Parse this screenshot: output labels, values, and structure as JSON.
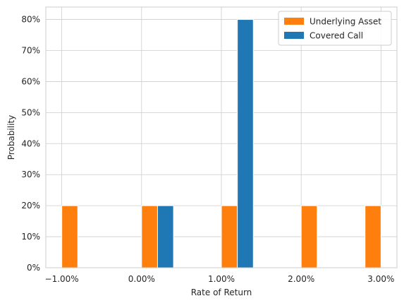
{
  "chart_data": {
    "type": "bar",
    "xlabel": "Rate of Return",
    "ylabel": "Probability",
    "xlim": [
      -1.2,
      3.2
    ],
    "ylim": [
      0,
      84
    ],
    "grid": true,
    "legend_position": "top-right",
    "x_ticks": [
      {
        "value": -1.0,
        "label": "−1.00%"
      },
      {
        "value": 0.0,
        "label": "0.00%"
      },
      {
        "value": 1.0,
        "label": "1.00%"
      },
      {
        "value": 2.0,
        "label": "2.00%"
      },
      {
        "value": 3.0,
        "label": "3.00%"
      }
    ],
    "y_ticks": [
      {
        "value": 0,
        "label": "0%"
      },
      {
        "value": 10,
        "label": "10%"
      },
      {
        "value": 20,
        "label": "20%"
      },
      {
        "value": 30,
        "label": "30%"
      },
      {
        "value": 40,
        "label": "40%"
      },
      {
        "value": 50,
        "label": "50%"
      },
      {
        "value": 60,
        "label": "60%"
      },
      {
        "value": 70,
        "label": "70%"
      },
      {
        "value": 80,
        "label": "80%"
      }
    ],
    "series": [
      {
        "name": "Underlying Asset",
        "color": "#ff7f0e",
        "bins": [
          {
            "x0": -1.0,
            "x1": -0.8,
            "value": 20
          },
          {
            "x0": 0.0,
            "x1": 0.2,
            "value": 20
          },
          {
            "x0": 1.0,
            "x1": 1.2,
            "value": 20
          },
          {
            "x0": 2.0,
            "x1": 2.2,
            "value": 20
          },
          {
            "x0": 2.8,
            "x1": 3.0,
            "value": 20
          }
        ]
      },
      {
        "name": "Covered Call",
        "color": "#1f77b4",
        "bins": [
          {
            "x0": 0.2,
            "x1": 0.4,
            "value": 20
          },
          {
            "x0": 1.2,
            "x1": 1.4,
            "value": 80
          }
        ]
      }
    ]
  }
}
